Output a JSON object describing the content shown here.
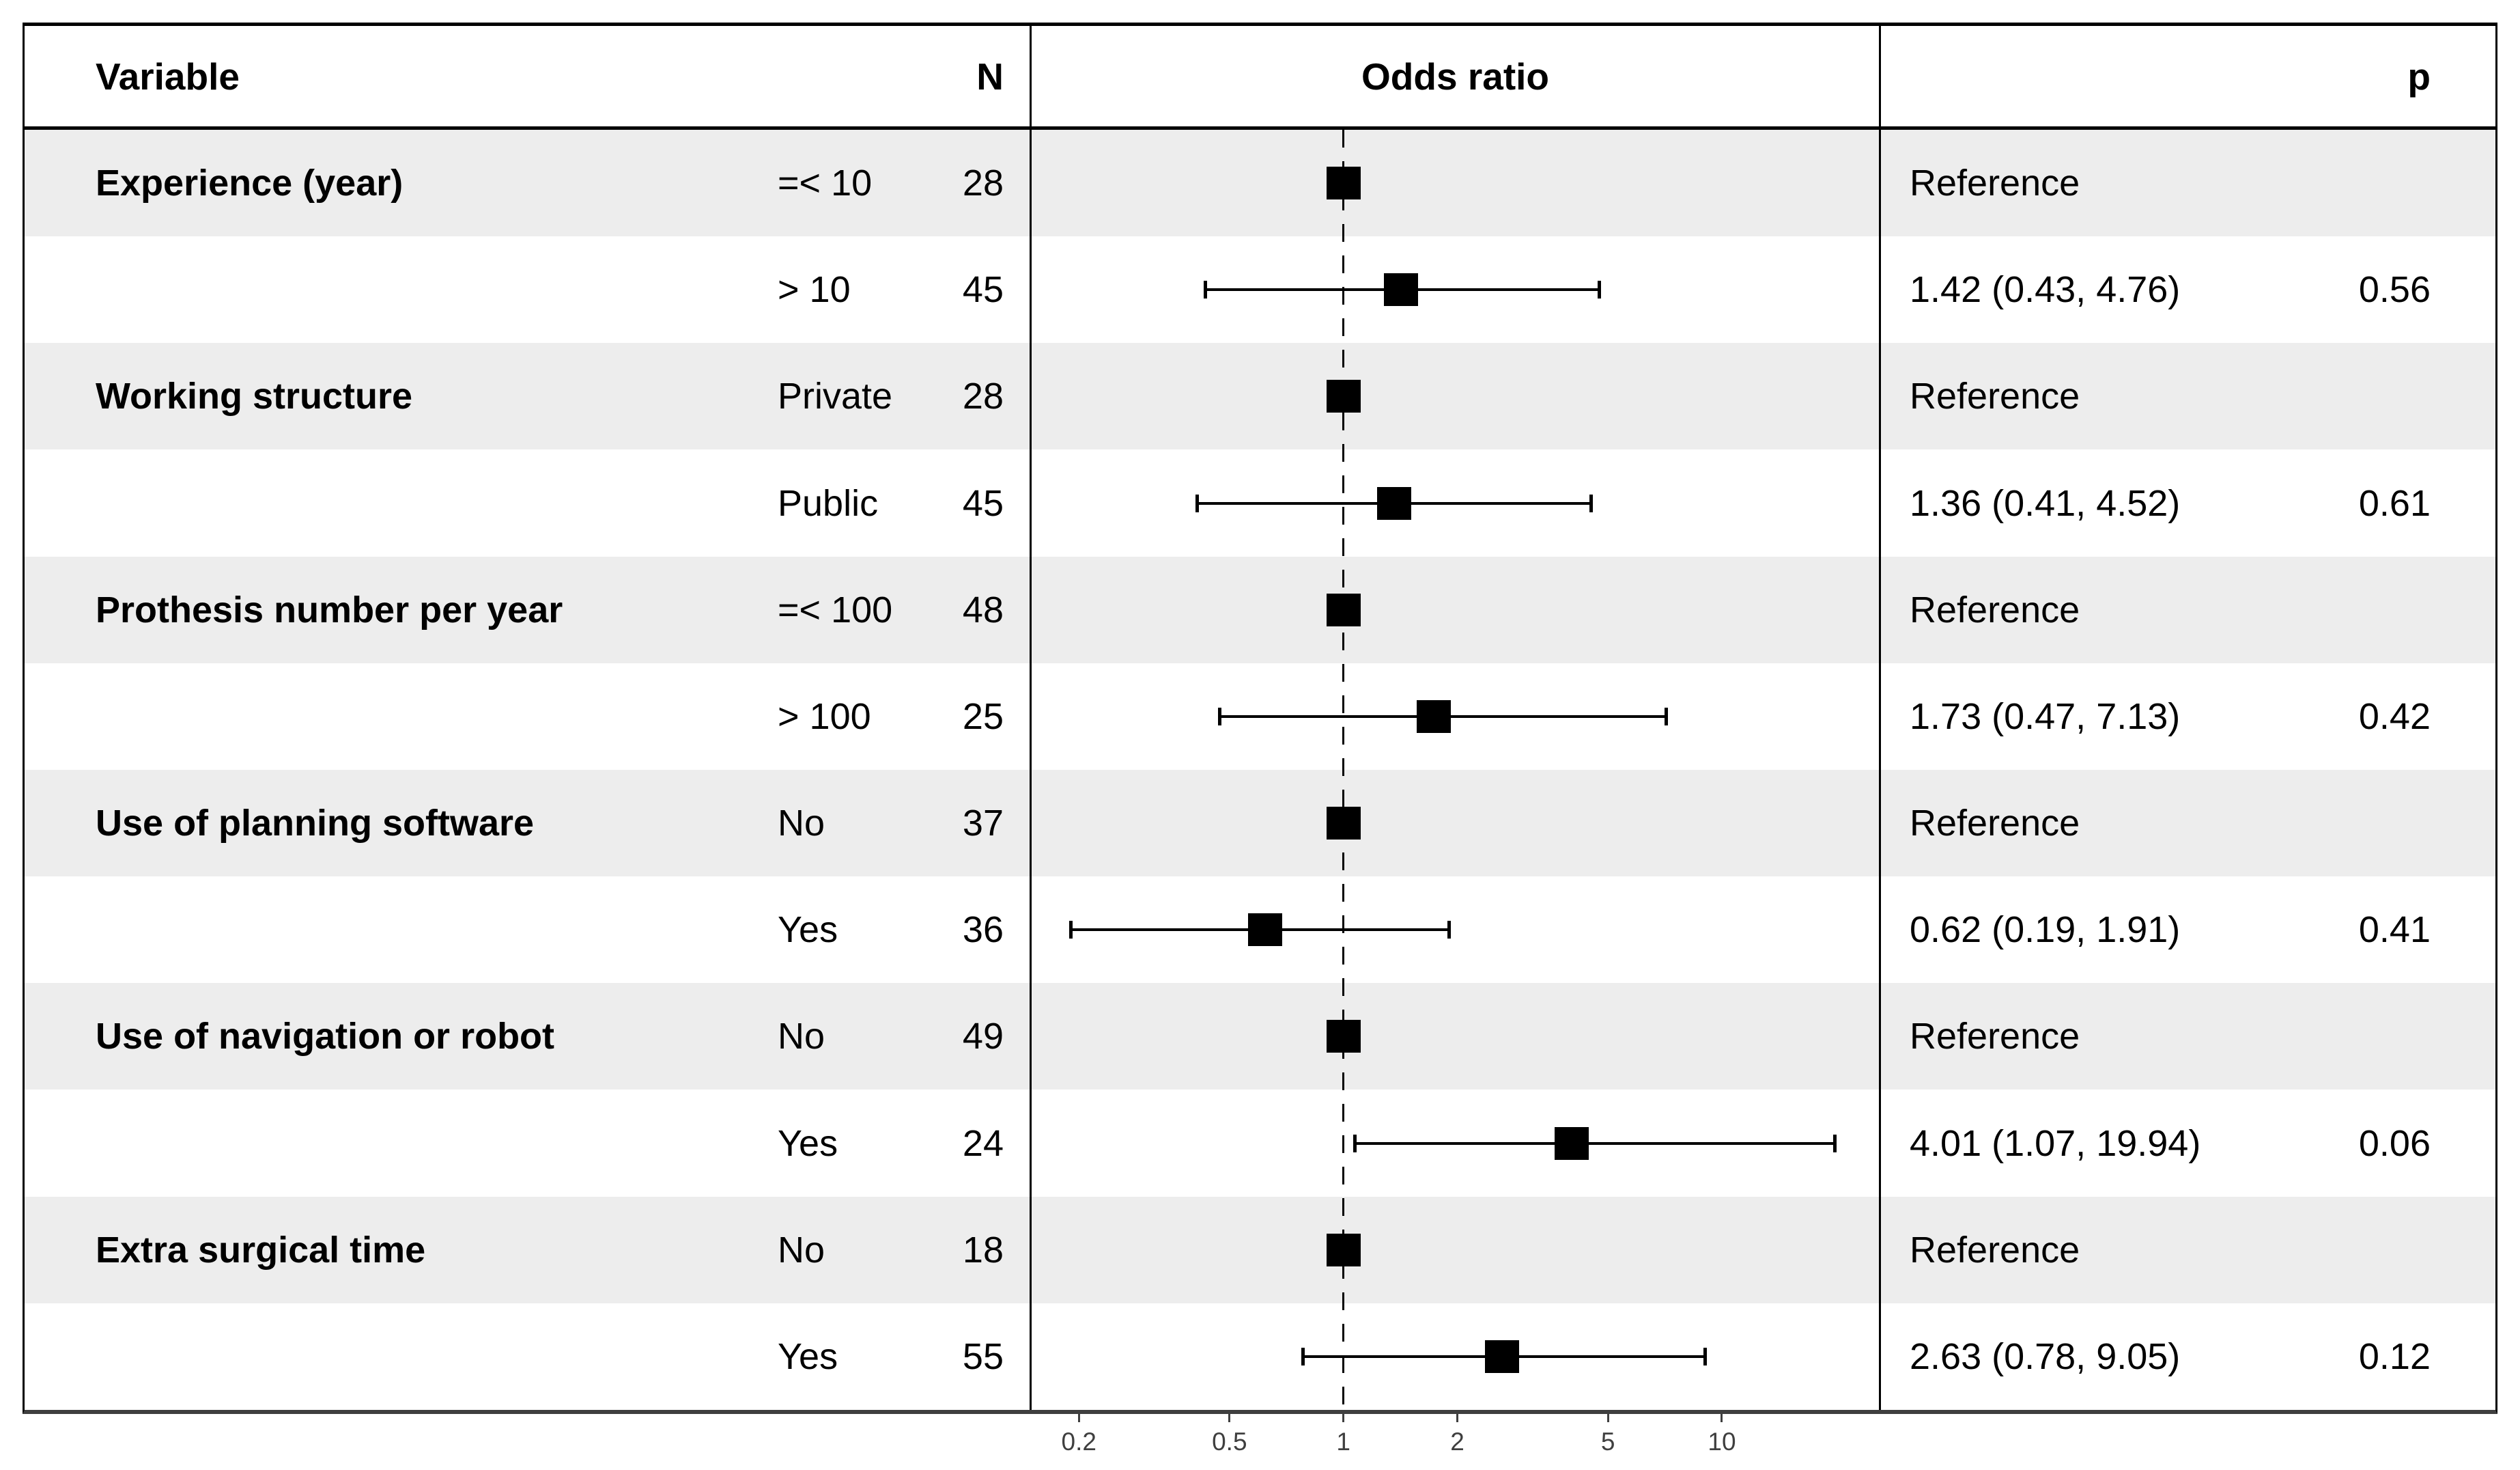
{
  "header": {
    "variable": "Variable",
    "n": "N",
    "odds_ratio": "Odds ratio",
    "p": "p"
  },
  "colors": {
    "band": "#EDEDED",
    "marker": "#000000",
    "border": "#000000",
    "axis": "#3f3f3f"
  },
  "chart_data": {
    "type": "forest",
    "x_scale": "log",
    "x_range": [
      0.15,
      26
    ],
    "x_ticks": [
      0.2,
      0.5,
      1,
      2,
      5,
      10
    ],
    "x_tick_labels": [
      "0.2",
      "0.5",
      "1",
      "2",
      "5",
      "10"
    ],
    "reference_line": 1,
    "legend_position": "none",
    "grid": false,
    "rows": [
      {
        "variable": "Experience (year)",
        "category": "=< 10",
        "n": "28",
        "or": 1,
        "reference": true,
        "estimate_label": "Reference",
        "p": ""
      },
      {
        "variable": "",
        "category": "> 10",
        "n": "45",
        "or": 1.42,
        "ci_low": 0.43,
        "ci_high": 4.76,
        "reference": false,
        "estimate_label": "1.42 (0.43, 4.76)",
        "p": "0.56"
      },
      {
        "variable": "Working structure",
        "category": "Private",
        "n": "28",
        "or": 1,
        "reference": true,
        "estimate_label": "Reference",
        "p": ""
      },
      {
        "variable": "",
        "category": "Public",
        "n": "45",
        "or": 1.36,
        "ci_low": 0.41,
        "ci_high": 4.52,
        "reference": false,
        "estimate_label": "1.36 (0.41, 4.52)",
        "p": "0.61"
      },
      {
        "variable": "Prothesis number per year",
        "category": "=< 100",
        "n": "48",
        "or": 1,
        "reference": true,
        "estimate_label": "Reference",
        "p": ""
      },
      {
        "variable": "",
        "category": "> 100",
        "n": "25",
        "or": 1.73,
        "ci_low": 0.47,
        "ci_high": 7.13,
        "reference": false,
        "estimate_label": "1.73 (0.47, 7.13)",
        "p": "0.42"
      },
      {
        "variable": "Use of planning software",
        "category": "No",
        "n": "37",
        "or": 1,
        "reference": true,
        "estimate_label": "Reference",
        "p": ""
      },
      {
        "variable": "",
        "category": "Yes",
        "n": "36",
        "or": 0.62,
        "ci_low": 0.19,
        "ci_high": 1.91,
        "reference": false,
        "estimate_label": "0.62 (0.19, 1.91)",
        "p": "0.41"
      },
      {
        "variable": "Use of navigation or robot",
        "category": "No",
        "n": "49",
        "or": 1,
        "reference": true,
        "estimate_label": "Reference",
        "p": ""
      },
      {
        "variable": "",
        "category": "Yes",
        "n": "24",
        "or": 4.01,
        "ci_low": 1.07,
        "ci_high": 19.94,
        "reference": false,
        "estimate_label": "4.01 (1.07, 19.94)",
        "p": "0.06"
      },
      {
        "variable": "Extra surgical time",
        "category": "No",
        "n": "18",
        "or": 1,
        "reference": true,
        "estimate_label": "Reference",
        "p": ""
      },
      {
        "variable": "",
        "category": "Yes",
        "n": "55",
        "or": 2.63,
        "ci_low": 0.78,
        "ci_high": 9.05,
        "reference": false,
        "estimate_label": "2.63 (0.78, 9.05)",
        "p": "0.12"
      }
    ]
  }
}
